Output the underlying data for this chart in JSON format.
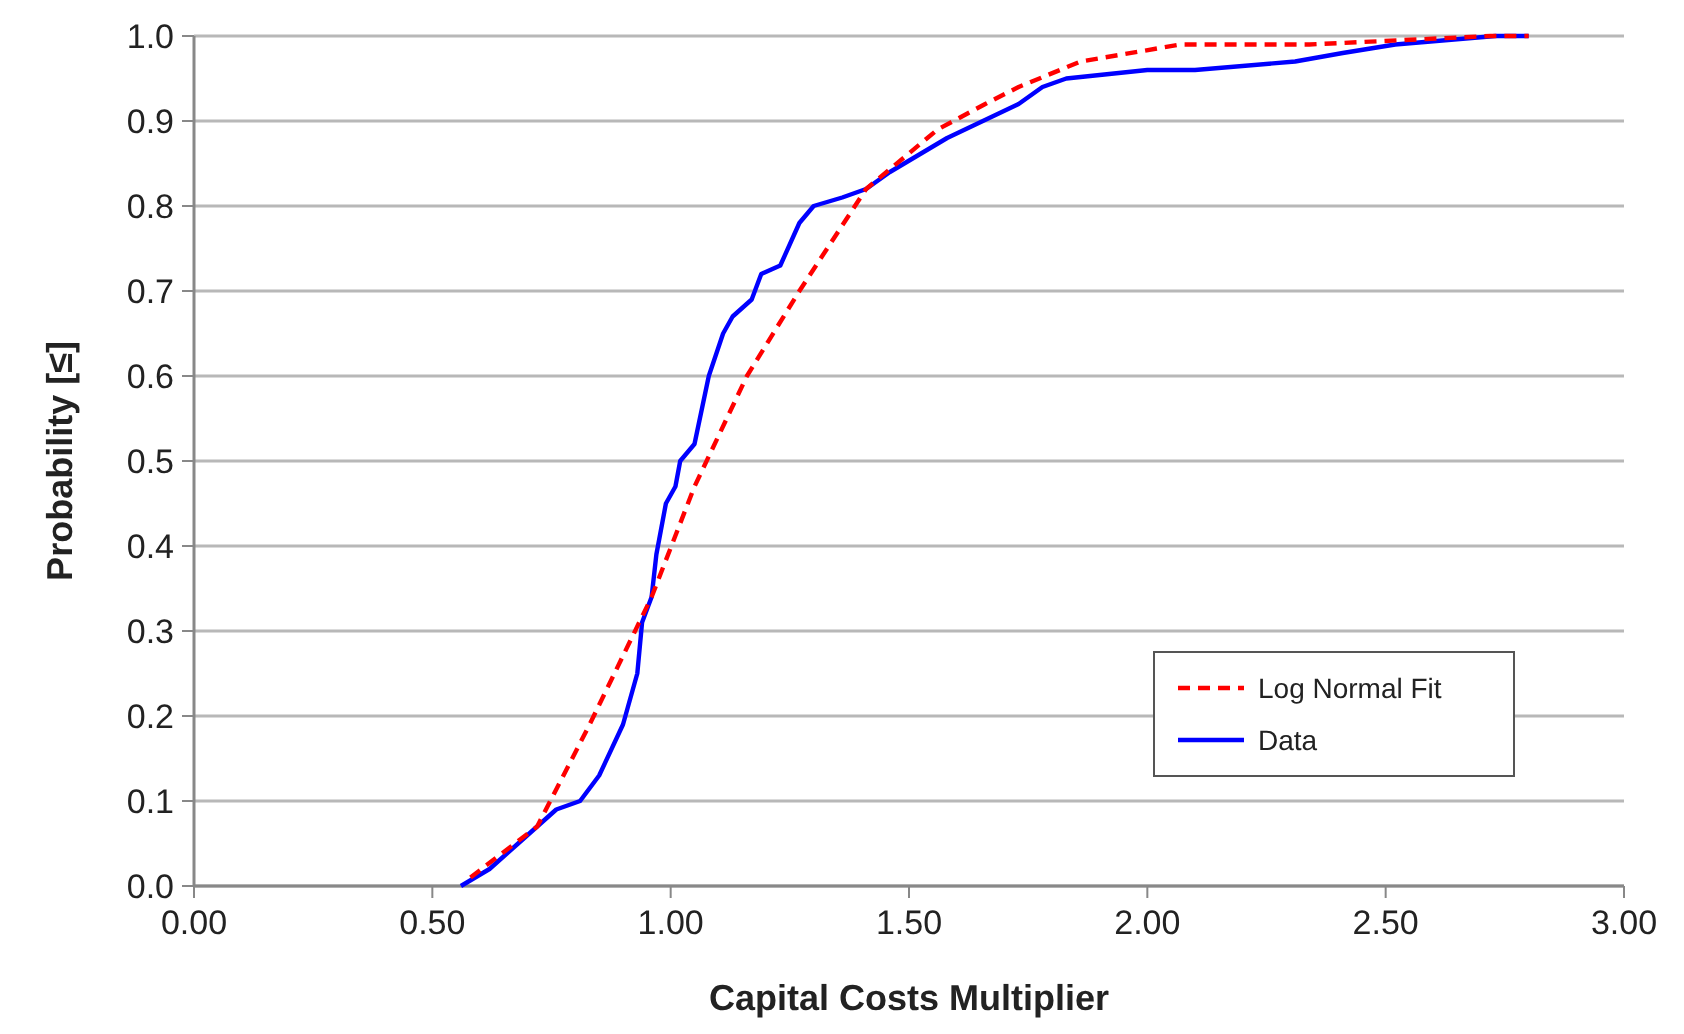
{
  "chart_data": {
    "type": "line",
    "xlabel": "Capital Costs Multiplier",
    "ylabel": "Probability [≤]",
    "xlim": [
      0,
      3
    ],
    "ylim": [
      0,
      1
    ],
    "xticks": [
      {
        "value": 0,
        "label": "0.00"
      },
      {
        "value": 0.5,
        "label": "0.50"
      },
      {
        "value": 1,
        "label": "1.00"
      },
      {
        "value": 1.5,
        "label": "1.50"
      },
      {
        "value": 2,
        "label": "2.00"
      },
      {
        "value": 2.5,
        "label": "2.50"
      },
      {
        "value": 3,
        "label": "3.00"
      }
    ],
    "yticks": [
      {
        "value": 0,
        "label": "0.0"
      },
      0.1,
      0.2,
      0.3,
      0.4,
      0.5,
      0.6,
      0.7,
      0.8,
      0.9,
      {
        "value": 1,
        "label": "1.0"
      }
    ],
    "grid": "y",
    "legend": "bottom right",
    "series": [
      {
        "name": "Log Normal Fit",
        "color": "#ff0000",
        "line_style": "dashed",
        "x": [
          0.58,
          0.65,
          0.72,
          0.83,
          0.96,
          1.05,
          1.16,
          1.27,
          1.41,
          1.56,
          1.66,
          1.73,
          1.86,
          2.07,
          2.34,
          2.72,
          2.8
        ],
        "values": [
          0.01,
          0.04,
          0.07,
          0.19,
          0.34,
          0.47,
          0.6,
          0.7,
          0.82,
          0.89,
          0.92,
          0.94,
          0.97,
          0.99,
          0.99,
          1.0,
          1.0
        ]
      },
      {
        "name": "Data",
        "color": "#0000ff",
        "line_style": "solid",
        "x": [
          0.56,
          0.62,
          0.68,
          0.72,
          0.76,
          0.81,
          0.85,
          0.9,
          0.91,
          0.93,
          0.94,
          0.96,
          0.97,
          0.99,
          1.01,
          1.02,
          1.05,
          1.08,
          1.11,
          1.13,
          1.17,
          1.19,
          1.23,
          1.27,
          1.3,
          1.36,
          1.41,
          1.46,
          1.58,
          1.73,
          1.78,
          1.83,
          2.0,
          2.1,
          2.31,
          2.41,
          2.52,
          2.73,
          2.8
        ],
        "values": [
          0,
          0.02,
          0.05,
          0.07,
          0.09,
          0.1,
          0.13,
          0.19,
          0.21,
          0.25,
          0.31,
          0.34,
          0.39,
          0.45,
          0.47,
          0.5,
          0.52,
          0.6,
          0.65,
          0.67,
          0.69,
          0.72,
          0.73,
          0.78,
          0.8,
          0.81,
          0.82,
          0.84,
          0.88,
          0.92,
          0.94,
          0.95,
          0.96,
          0.96,
          0.97,
          0.98,
          0.99,
          1.0,
          1.0
        ]
      }
    ]
  }
}
